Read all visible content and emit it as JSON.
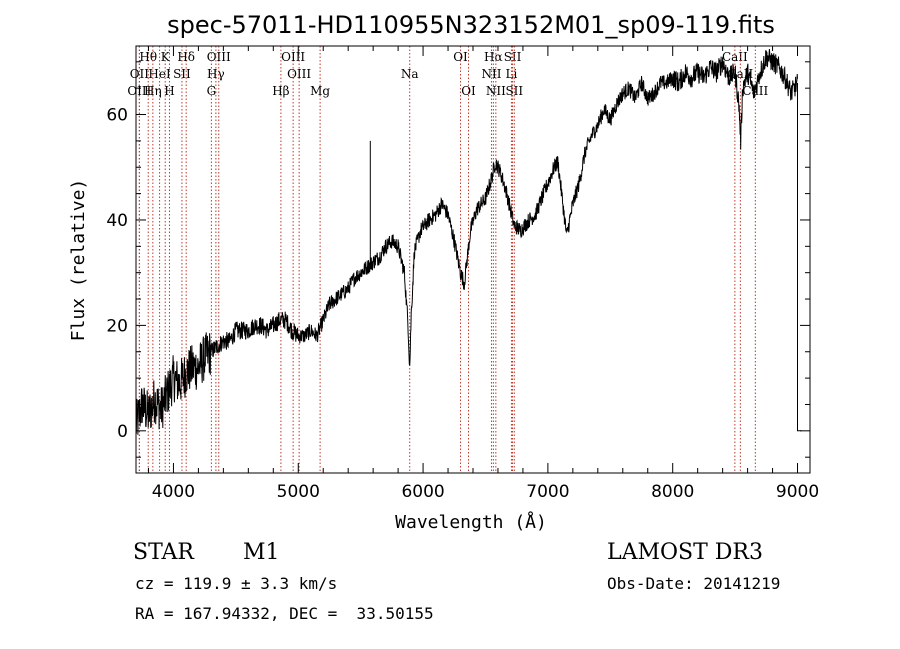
{
  "chart_data": {
    "type": "line",
    "title": "spec-57011-HD110955N323152M01_sp09-119.fits",
    "xlabel": "Wavelength (Å)",
    "ylabel": "Flux (relative)",
    "xlim": [
      3700,
      9100
    ],
    "ylim": [
      -8,
      73
    ],
    "xticks": [
      4000,
      5000,
      6000,
      7000,
      8000,
      9000
    ],
    "yticks": [
      0,
      20,
      40,
      60
    ],
    "xtick_labels": [
      "4000",
      "5000",
      "6000",
      "7000",
      "8000",
      "9000"
    ],
    "ytick_labels": [
      "0",
      "20",
      "40",
      "60"
    ],
    "series": [
      {
        "name": "flux",
        "x": [
          3700,
          3750,
          3800,
          3850,
          3900,
          3950,
          4000,
          4050,
          4100,
          4150,
          4200,
          4250,
          4300,
          4350,
          4400,
          4450,
          4500,
          4550,
          4600,
          4650,
          4700,
          4750,
          4800,
          4850,
          4900,
          4950,
          5000,
          5050,
          5100,
          5150,
          5200,
          5250,
          5300,
          5350,
          5400,
          5450,
          5500,
          5550,
          5600,
          5650,
          5700,
          5750,
          5800,
          5850,
          5880,
          5893,
          5905,
          5930,
          5980,
          6050,
          6100,
          6150,
          6200,
          6250,
          6300,
          6330,
          6380,
          6430,
          6500,
          6550,
          6580,
          6620,
          6660,
          6700,
          6730,
          6780,
          6850,
          6900,
          6950,
          7000,
          7050,
          7080,
          7120,
          7150,
          7200,
          7250,
          7300,
          7350,
          7400,
          7450,
          7500,
          7550,
          7600,
          7650,
          7700,
          7750,
          7800,
          7850,
          7900,
          7950,
          8000,
          8050,
          8100,
          8150,
          8200,
          8250,
          8300,
          8350,
          8400,
          8450,
          8500,
          8530,
          8545,
          8560,
          8600,
          8650,
          8700,
          8750,
          8800,
          8850,
          8900,
          8950,
          9000
        ],
        "y": [
          1,
          5,
          3,
          6,
          4,
          7,
          10,
          9,
          11,
          12,
          12,
          14,
          15,
          16,
          17,
          17,
          19,
          19,
          19,
          20,
          20,
          19,
          20,
          21,
          21,
          19,
          18,
          18,
          19,
          18,
          21,
          24,
          25,
          26,
          27,
          29,
          30,
          31,
          32,
          33,
          35,
          36,
          35,
          30,
          20,
          12,
          22,
          34,
          38,
          40,
          41,
          43,
          41,
          36,
          30,
          28,
          38,
          42,
          44,
          48,
          51,
          49,
          46,
          42,
          39,
          38,
          40,
          41,
          44,
          47,
          50,
          51,
          43,
          37,
          43,
          47,
          53,
          56,
          58,
          61,
          59,
          62,
          64,
          65,
          63,
          66,
          63,
          64,
          66,
          66,
          67,
          66,
          68,
          67,
          68,
          67,
          69,
          68,
          70,
          67,
          68,
          62,
          55,
          65,
          68,
          64,
          68,
          71,
          70,
          69,
          67,
          64,
          66
        ]
      }
    ],
    "emission_lines": [
      {
        "label": "Hθ",
        "x": 3798,
        "row": 1
      },
      {
        "label": "K",
        "x": 3934,
        "row": 1
      },
      {
        "label": "Hδ",
        "x": 4102,
        "row": 1
      },
      {
        "label": "OIII",
        "x": 4363,
        "row": 1
      },
      {
        "label": "OIII",
        "x": 4959,
        "row": 1
      },
      {
        "label": "OI",
        "x": 6300,
        "row": 1
      },
      {
        "label": "Hα",
        "x": 6563,
        "row": 1
      },
      {
        "label": "SII",
        "x": 6717,
        "row": 1
      },
      {
        "label": "CaII",
        "x": 8498,
        "row": 1
      },
      {
        "label": "OII",
        "x": 3727,
        "row": 2
      },
      {
        "label": "HeI",
        "x": 3889,
        "row": 2
      },
      {
        "label": "SII",
        "x": 4068,
        "row": 2
      },
      {
        "label": "Hγ",
        "x": 4340,
        "row": 2
      },
      {
        "label": "OIII",
        "x": 5007,
        "row": 2
      },
      {
        "label": "Na",
        "x": 5893,
        "row": 2
      },
      {
        "label": "NII",
        "x": 6548,
        "row": 2
      },
      {
        "label": "Li",
        "x": 6708,
        "row": 2
      },
      {
        "label": "CaII",
        "x": 8542,
        "row": 2
      },
      {
        "label": "OIII",
        "x": 3727,
        "row": 3
      },
      {
        "label": "Hη",
        "x": 3835,
        "row": 3
      },
      {
        "label": "H",
        "x": 3968,
        "row": 3
      },
      {
        "label": "G",
        "x": 4304,
        "row": 3
      },
      {
        "label": "Hβ",
        "x": 4861,
        "row": 3
      },
      {
        "label": "Mg",
        "x": 5175,
        "row": 3
      },
      {
        "label": "OI",
        "x": 6364,
        "row": 3
      },
      {
        "label": "NII",
        "x": 6583,
        "row": 3
      },
      {
        "label": "SII",
        "x": 6731,
        "row": 3
      },
      {
        "label": "CaII",
        "x": 8662,
        "row": 3
      }
    ],
    "grid": false,
    "legend": "none"
  },
  "info": {
    "object_class": "STAR",
    "subclass": "M1",
    "survey": "LAMOST DR3",
    "cz": "cz = 119.9 ± 3.3 km/s",
    "obs_date": "Obs-Date: 20141219",
    "coords": "RA = 167.94332, DEC =  33.50155"
  },
  "colors": {
    "line_marker": "#c0392b",
    "spectrum": "#000000"
  }
}
